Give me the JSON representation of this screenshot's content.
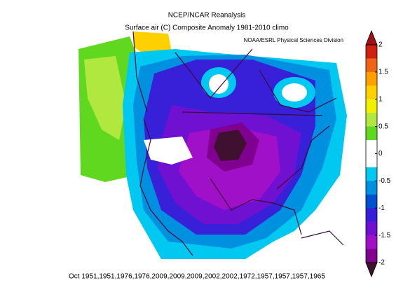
{
  "header": {
    "title": "NCEP/NCAR Reanalysis",
    "subtitle": "Surface air (C) Composite Anomaly 1981-2010 climo",
    "credit": "NOAA/ESRL Physical Sciences Division"
  },
  "footer": {
    "caption": "Oct 1951,1951,1976,1976,2009,2009,2009,2002,2002,1972,1957,1957,1957,1965"
  },
  "colorbar": {
    "lim": [
      -2,
      2
    ],
    "ticks": [
      2,
      1.5,
      1,
      0.5,
      0,
      -0.5,
      -1,
      -1.5,
      -2
    ],
    "colors": [
      "#d02010",
      "#f06418",
      "#ffa000",
      "#ffd000",
      "#f0f000",
      "#b0e840",
      "#60d820",
      "#ffffff",
      "#ffffff",
      "#00c8f0",
      "#0090e0",
      "#0050d0",
      "#3820d8",
      "#7010d0",
      "#a010c8",
      "#800090"
    ],
    "over_color": "#a01010",
    "under_color": "#401030"
  }
}
